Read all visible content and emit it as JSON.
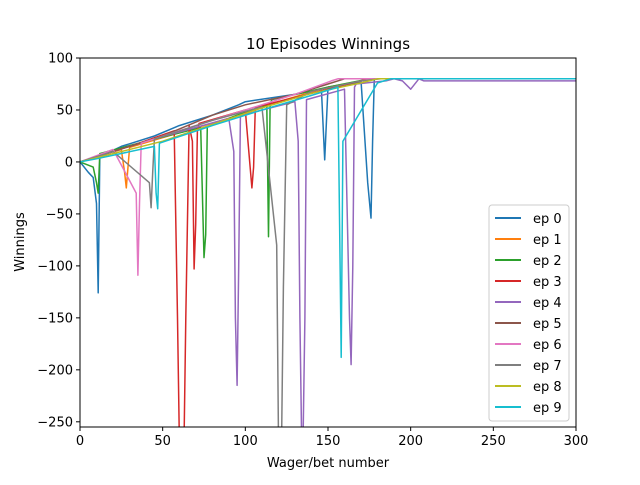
{
  "chart_data": {
    "type": "line",
    "title": "10 Episodes Winnings",
    "xlabel": "Wager/bet number",
    "ylabel": "Winnings",
    "xlim": [
      0,
      300
    ],
    "ylim": [
      -255,
      100
    ],
    "xticks": [
      0,
      50,
      100,
      150,
      200,
      250,
      300
    ],
    "yticks": [
      -250,
      -200,
      -150,
      -100,
      -50,
      0,
      50,
      100
    ],
    "grid": false,
    "legend_position": "lower-right",
    "series": [
      {
        "name": "ep 0",
        "color": "#1f77b4",
        "x": [
          0,
          5,
          8,
          10,
          11,
          12,
          25,
          45,
          60,
          80,
          96,
          100,
          130,
          146,
          148,
          150,
          163,
          170,
          174,
          176,
          177,
          178,
          300
        ],
        "y": [
          0,
          -10,
          -15,
          -40,
          -126,
          5,
          15,
          25,
          35,
          45,
          55,
          58,
          65,
          70,
          2,
          72,
          75,
          77,
          -20,
          -54,
          20,
          80,
          80
        ]
      },
      {
        "name": "ep 1",
        "color": "#ff7f0e",
        "x": [
          0,
          10,
          25,
          27,
          28,
          30,
          60,
          90,
          120,
          150,
          170,
          180,
          300
        ],
        "y": [
          0,
          5,
          12,
          -10,
          -25,
          14,
          28,
          42,
          58,
          72,
          78,
          80,
          80
        ]
      },
      {
        "name": "ep 2",
        "color": "#2ca02c",
        "x": [
          0,
          8,
          10,
          11,
          12,
          40,
          73,
          75,
          76,
          77,
          100,
          113,
          114,
          115,
          116,
          150,
          175,
          300
        ],
        "y": [
          0,
          -5,
          -20,
          -30,
          8,
          20,
          33,
          -92,
          -70,
          34,
          48,
          55,
          -72,
          55,
          60,
          72,
          80,
          80
        ]
      },
      {
        "name": "ep 3",
        "color": "#d62728",
        "x": [
          0,
          30,
          57,
          59,
          60,
          61,
          62,
          63,
          64,
          66,
          68,
          69,
          70,
          71,
          72,
          100,
          104,
          105,
          106,
          107,
          130,
          160,
          175,
          300
        ],
        "y": [
          0,
          15,
          30,
          -150,
          -258,
          -258,
          -258,
          -258,
          -150,
          35,
          20,
          -103,
          -60,
          30,
          37,
          50,
          -25,
          -5,
          52,
          53,
          62,
          74,
          80,
          80
        ]
      },
      {
        "name": "ep 4",
        "color": "#9467bd",
        "x": [
          0,
          40,
          90,
          93,
          94,
          95,
          96,
          97,
          98,
          130,
          132,
          133,
          134,
          135,
          136,
          137,
          160,
          163,
          164,
          165,
          166,
          167,
          185,
          190,
          195,
          200,
          205,
          208,
          300
        ],
        "y": [
          0,
          20,
          42,
          10,
          -150,
          -215,
          -100,
          44,
          45,
          58,
          20,
          -150,
          -258,
          -258,
          -150,
          60,
          70,
          -150,
          -195,
          -100,
          72,
          75,
          78,
          80,
          78,
          70,
          80,
          78,
          78
        ]
      },
      {
        "name": "ep 5",
        "color": "#8c564b",
        "x": [
          0,
          20,
          50,
          80,
          100,
          130,
          150,
          160,
          300
        ],
        "y": [
          0,
          10,
          25,
          45,
          55,
          65,
          75,
          80,
          80
        ]
      },
      {
        "name": "ep 6",
        "color": "#e377c2",
        "x": [
          0,
          20,
          34,
          35,
          36,
          37,
          60,
          100,
          130,
          152,
          156,
          300
        ],
        "y": [
          0,
          12,
          -30,
          -109,
          -40,
          18,
          30,
          50,
          65,
          78,
          80,
          80
        ]
      },
      {
        "name": "ep 7",
        "color": "#7f7f7f",
        "x": [
          0,
          20,
          42,
          43,
          44,
          45,
          80,
          110,
          119,
          120,
          121,
          122,
          123,
          125,
          140,
          170,
          182,
          300
        ],
        "y": [
          0,
          10,
          -20,
          -44,
          -10,
          22,
          40,
          53,
          -80,
          -258,
          -258,
          -258,
          -120,
          55,
          68,
          78,
          80,
          80
        ]
      },
      {
        "name": "ep 8",
        "color": "#bcbd22",
        "x": [
          0,
          20,
          50,
          80,
          110,
          140,
          170,
          180,
          300
        ],
        "y": [
          0,
          8,
          20,
          36,
          52,
          66,
          76,
          80,
          80
        ]
      },
      {
        "name": "ep 9",
        "color": "#17becf",
        "x": [
          0,
          10,
          45,
          46,
          47,
          48,
          80,
          110,
          140,
          156,
          157,
          158,
          159,
          180,
          188,
          300
        ],
        "y": [
          0,
          3,
          15,
          -30,
          -45,
          18,
          35,
          50,
          64,
          72,
          -60,
          -188,
          20,
          76,
          80,
          80
        ]
      }
    ]
  }
}
